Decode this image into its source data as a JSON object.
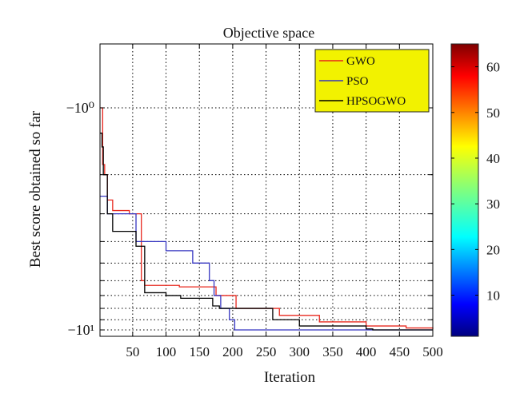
{
  "chart_data": {
    "type": "line",
    "title": "Objective space",
    "xlabel": "Iteration",
    "ylabel": "Best score obtained so far",
    "y_scale": "log",
    "x_ticks": [
      "50",
      "100",
      "150",
      "200",
      "250",
      "300",
      "350",
      "400",
      "450",
      "500"
    ],
    "y_ticks": [
      "−10⁰",
      "−10¹"
    ],
    "xlim": [
      1,
      500
    ],
    "grid": true,
    "legend_position": "top-right",
    "legend_background": "#f2f200",
    "series": [
      {
        "name": "GWO",
        "color": "#e8281e",
        "x": [
          1,
          5,
          8,
          12,
          20,
          45,
          63,
          68,
          120,
          175,
          205,
          270,
          330,
          400,
          460,
          500
        ],
        "y": [
          -1.0,
          -1.8,
          -2.0,
          -2.6,
          -2.9,
          -3.0,
          -6.0,
          -6.3,
          -6.4,
          -7.0,
          -8.0,
          -8.6,
          -9.2,
          -9.6,
          -9.8,
          -9.9
        ]
      },
      {
        "name": "PSO",
        "color": "#3535c0",
        "x": [
          1,
          10,
          12,
          30,
          40,
          45,
          55,
          100,
          140,
          165,
          172,
          182,
          195,
          203,
          500
        ],
        "y": [
          -2.5,
          -2.5,
          -3.0,
          -3.0,
          -3.0,
          -3.0,
          -4.0,
          -4.4,
          -5.0,
          -6.0,
          -7.0,
          -8.0,
          -9.0,
          -10.0,
          -10.0
        ]
      },
      {
        "name": "HPSOGWO",
        "color": "#000000",
        "x": [
          1,
          4,
          6,
          12,
          20,
          40,
          55,
          68,
          100,
          122,
          170,
          180,
          260,
          300,
          390,
          400,
          410,
          450,
          500
        ],
        "y": [
          -1.3,
          -1.5,
          -2.0,
          -3.0,
          -3.6,
          -3.6,
          -4.2,
          -6.8,
          -7.0,
          -7.2,
          -7.8,
          -8.0,
          -9.0,
          -9.6,
          -9.6,
          -9.9,
          -10.0,
          -10.0,
          -10.0
        ]
      }
    ],
    "colorbar": {
      "ticks": [
        "10",
        "20",
        "30",
        "40",
        "50",
        "60"
      ],
      "range": [
        1,
        65
      ],
      "colormap": "jet"
    }
  }
}
